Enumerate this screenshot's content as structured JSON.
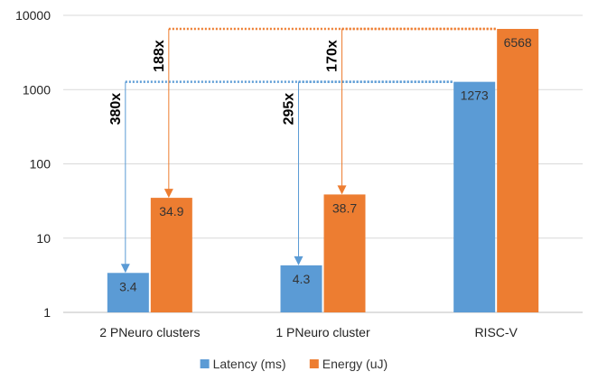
{
  "chart_data": {
    "type": "bar",
    "scale": "log",
    "ylim": [
      1,
      10000
    ],
    "yticks": [
      "1",
      "10",
      "100",
      "1000",
      "10000"
    ],
    "grid": true,
    "legend_position": "bottom",
    "categories": [
      "2 PNeuro clusters",
      "1 PNeuro cluster",
      "RISC-V"
    ],
    "series": [
      {
        "name": "Latency (ms)",
        "color": "#5B9BD5",
        "values": [
          3.4,
          4.3,
          1273
        ],
        "labels": [
          "3.4",
          "4.3",
          "1273"
        ]
      },
      {
        "name": "Energy (uJ)",
        "color": "#ED7D31",
        "values": [
          34.9,
          38.7,
          6568
        ],
        "labels": [
          "34.9",
          "38.7",
          "6568"
        ]
      }
    ],
    "annotations": [
      {
        "text": "380x",
        "series": 0,
        "category": 0
      },
      {
        "text": "188x",
        "series": 1,
        "category": 0
      },
      {
        "text": "295x",
        "series": 0,
        "category": 1
      },
      {
        "text": "170x",
        "series": 1,
        "category": 1
      }
    ]
  }
}
